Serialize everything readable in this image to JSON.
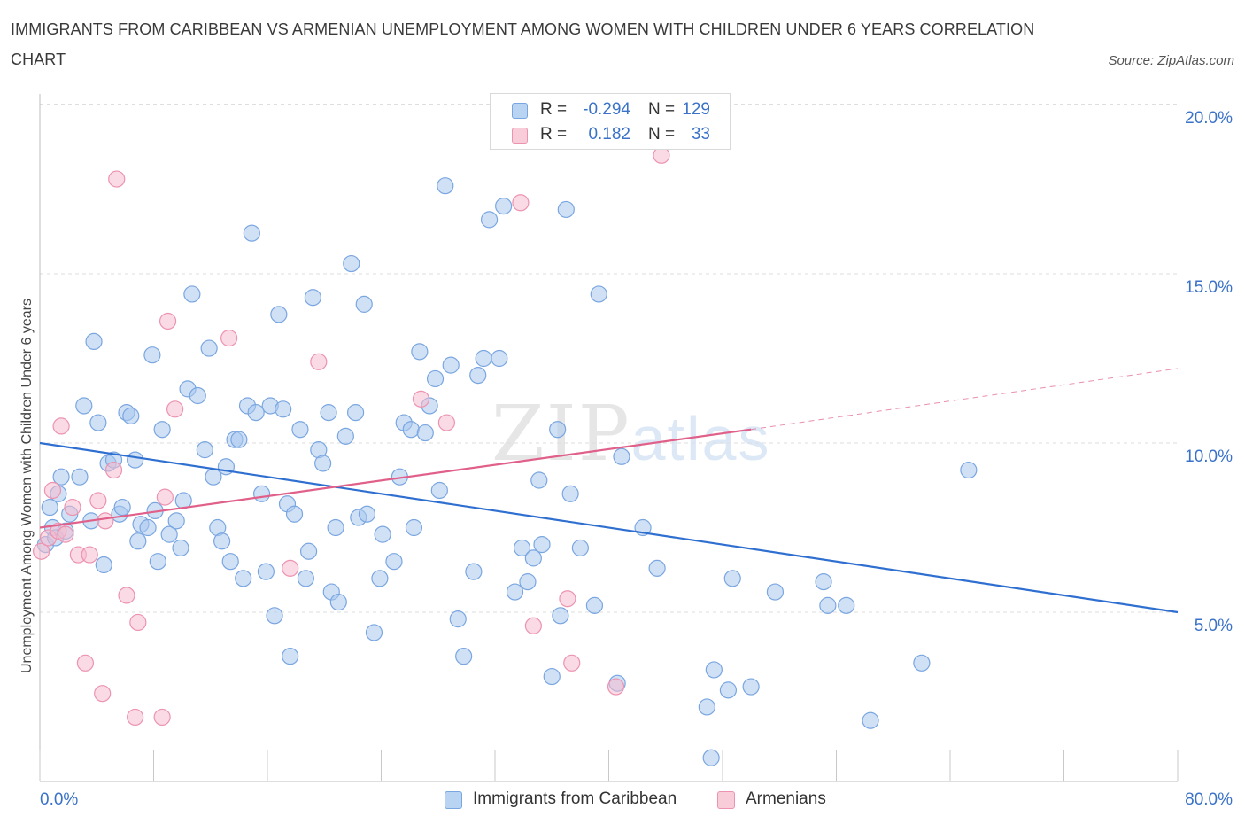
{
  "title": "IMMIGRANTS FROM CARIBBEAN VS ARMENIAN UNEMPLOYMENT AMONG WOMEN WITH CHILDREN UNDER 6 YEARS CORRELATION CHART",
  "source": "Source: ZipAtlas.com",
  "watermark": {
    "part1": "ZIP",
    "part2": "atlas"
  },
  "colors": {
    "blue_fill": "#aac8ef",
    "blue_stroke": "#7aa6e0",
    "blue_line": "#2f6fd0",
    "pink_fill": "#f6bccd",
    "pink_stroke": "#ec93b0",
    "pink_line": "#e0608a",
    "axis_text": "#3a72c8",
    "grid": "#dedede"
  },
  "legend_top": {
    "rows": [
      {
        "r_label": "R =",
        "r_value": "-0.294",
        "n_label": "N =",
        "n_value": "129"
      },
      {
        "r_label": "R =",
        "r_value": "0.182",
        "n_label": "N =",
        "n_value": "33"
      }
    ]
  },
  "legend_bottom": {
    "items": [
      "Immigrants from Caribbean",
      "Armenians"
    ]
  },
  "chart_data": {
    "type": "scatter",
    "xlabel": "",
    "ylabel": "Unemployment Among Women with Children Under 6 years",
    "xlim": [
      0,
      80
    ],
    "ylim": [
      0,
      20
    ],
    "x_tick_labels": [
      "0.0%",
      "80.0%"
    ],
    "y_tick_labels": [
      "5.0%",
      "10.0%",
      "15.0%",
      "20.0%"
    ],
    "y_gridlines": [
      5,
      10,
      15,
      20
    ],
    "grid": "dashed horizontal",
    "legend": "top-center and bottom",
    "series": [
      {
        "name": "Immigrants from Caribbean",
        "trend": {
          "x": [
            0,
            80
          ],
          "y": [
            10.0,
            5.0
          ],
          "style": "solid"
        },
        "points": [
          [
            0.4,
            7.0
          ],
          [
            0.7,
            8.1
          ],
          [
            0.9,
            7.5
          ],
          [
            1.1,
            7.2
          ],
          [
            1.3,
            8.5
          ],
          [
            1.5,
            9.0
          ],
          [
            1.8,
            7.4
          ],
          [
            2.1,
            7.9
          ],
          [
            2.8,
            9.0
          ],
          [
            3.1,
            11.1
          ],
          [
            3.6,
            7.7
          ],
          [
            3.8,
            13.0
          ],
          [
            4.1,
            10.6
          ],
          [
            4.5,
            6.4
          ],
          [
            4.8,
            9.4
          ],
          [
            5.2,
            9.5
          ],
          [
            5.6,
            7.9
          ],
          [
            5.8,
            8.1
          ],
          [
            6.1,
            10.9
          ],
          [
            6.4,
            10.8
          ],
          [
            6.7,
            9.5
          ],
          [
            6.9,
            7.1
          ],
          [
            7.1,
            7.6
          ],
          [
            7.6,
            7.5
          ],
          [
            7.9,
            12.6
          ],
          [
            8.1,
            8.0
          ],
          [
            8.3,
            6.5
          ],
          [
            8.6,
            10.4
          ],
          [
            9.1,
            7.3
          ],
          [
            9.6,
            7.7
          ],
          [
            9.9,
            6.9
          ],
          [
            10.1,
            8.3
          ],
          [
            10.4,
            11.6
          ],
          [
            10.7,
            14.4
          ],
          [
            11.1,
            11.4
          ],
          [
            11.6,
            9.8
          ],
          [
            11.9,
            12.8
          ],
          [
            12.2,
            9.0
          ],
          [
            12.5,
            7.5
          ],
          [
            12.8,
            7.1
          ],
          [
            13.1,
            9.3
          ],
          [
            13.4,
            6.5
          ],
          [
            13.7,
            10.1
          ],
          [
            14.0,
            10.1
          ],
          [
            14.3,
            6.0
          ],
          [
            14.6,
            11.1
          ],
          [
            14.9,
            16.2
          ],
          [
            15.2,
            10.9
          ],
          [
            15.6,
            8.5
          ],
          [
            15.9,
            6.2
          ],
          [
            16.2,
            11.1
          ],
          [
            16.5,
            4.9
          ],
          [
            16.8,
            13.8
          ],
          [
            17.1,
            11.0
          ],
          [
            17.4,
            8.2
          ],
          [
            17.6,
            3.7
          ],
          [
            17.9,
            7.9
          ],
          [
            18.3,
            10.4
          ],
          [
            18.7,
            6.0
          ],
          [
            18.9,
            6.8
          ],
          [
            19.2,
            14.3
          ],
          [
            19.6,
            9.8
          ],
          [
            19.9,
            9.4
          ],
          [
            20.3,
            10.9
          ],
          [
            20.5,
            5.6
          ],
          [
            20.8,
            7.5
          ],
          [
            21.0,
            5.3
          ],
          [
            21.5,
            10.2
          ],
          [
            21.9,
            15.3
          ],
          [
            22.2,
            10.9
          ],
          [
            22.4,
            7.8
          ],
          [
            22.8,
            14.1
          ],
          [
            23.0,
            7.9
          ],
          [
            23.5,
            4.4
          ],
          [
            23.9,
            6.0
          ],
          [
            24.1,
            7.3
          ],
          [
            24.9,
            6.5
          ],
          [
            25.3,
            9.0
          ],
          [
            25.6,
            10.6
          ],
          [
            26.1,
            10.4
          ],
          [
            26.3,
            7.5
          ],
          [
            26.7,
            12.7
          ],
          [
            27.1,
            10.3
          ],
          [
            27.4,
            11.1
          ],
          [
            27.8,
            11.9
          ],
          [
            28.1,
            8.6
          ],
          [
            28.5,
            17.6
          ],
          [
            28.9,
            12.3
          ],
          [
            29.4,
            4.8
          ],
          [
            29.8,
            3.7
          ],
          [
            30.5,
            6.2
          ],
          [
            30.8,
            12.0
          ],
          [
            31.2,
            12.5
          ],
          [
            31.6,
            16.6
          ],
          [
            32.3,
            12.5
          ],
          [
            32.6,
            17.0
          ],
          [
            33.4,
            5.6
          ],
          [
            33.9,
            6.9
          ],
          [
            34.3,
            5.9
          ],
          [
            34.7,
            6.6
          ],
          [
            35.1,
            8.9
          ],
          [
            35.3,
            7.0
          ],
          [
            36.0,
            3.1
          ],
          [
            36.4,
            10.4
          ],
          [
            36.6,
            4.9
          ],
          [
            37.0,
            16.9
          ],
          [
            37.3,
            8.5
          ],
          [
            38.0,
            6.9
          ],
          [
            39.0,
            5.2
          ],
          [
            39.3,
            14.4
          ],
          [
            40.6,
            2.9
          ],
          [
            40.9,
            9.6
          ],
          [
            42.4,
            7.5
          ],
          [
            43.4,
            6.3
          ],
          [
            46.9,
            2.2
          ],
          [
            47.2,
            0.7
          ],
          [
            47.4,
            3.3
          ],
          [
            48.4,
            2.7
          ],
          [
            48.7,
            6.0
          ],
          [
            50.0,
            2.8
          ],
          [
            51.7,
            5.6
          ],
          [
            55.1,
            5.9
          ],
          [
            55.4,
            5.2
          ],
          [
            56.7,
            5.2
          ],
          [
            58.4,
            1.8
          ],
          [
            62.0,
            3.5
          ],
          [
            65.3,
            9.2
          ]
        ]
      },
      {
        "name": "Armenians",
        "trend": {
          "x": [
            0,
            50
          ],
          "y": [
            7.5,
            10.4
          ],
          "style": "solid",
          "extension": {
            "x": [
              50,
              80
            ],
            "y": [
              10.4,
              12.2
            ],
            "style": "dashed"
          }
        },
        "points": [
          [
            0.1,
            6.8
          ],
          [
            0.6,
            7.2
          ],
          [
            0.9,
            8.6
          ],
          [
            1.3,
            7.4
          ],
          [
            1.5,
            10.5
          ],
          [
            1.8,
            7.3
          ],
          [
            2.3,
            8.1
          ],
          [
            2.7,
            6.7
          ],
          [
            3.2,
            3.5
          ],
          [
            3.5,
            6.7
          ],
          [
            4.1,
            8.3
          ],
          [
            4.4,
            2.6
          ],
          [
            4.6,
            7.7
          ],
          [
            5.2,
            9.2
          ],
          [
            5.4,
            17.8
          ],
          [
            6.1,
            5.5
          ],
          [
            6.7,
            1.9
          ],
          [
            6.9,
            4.7
          ],
          [
            8.6,
            1.9
          ],
          [
            8.8,
            8.4
          ],
          [
            9.0,
            13.6
          ],
          [
            9.5,
            11.0
          ],
          [
            13.3,
            13.1
          ],
          [
            17.6,
            6.3
          ],
          [
            19.6,
            12.4
          ],
          [
            26.8,
            11.3
          ],
          [
            28.6,
            10.6
          ],
          [
            33.8,
            17.1
          ],
          [
            34.7,
            4.6
          ],
          [
            37.1,
            5.4
          ],
          [
            37.4,
            3.5
          ],
          [
            40.5,
            2.8
          ],
          [
            43.7,
            18.5
          ]
        ]
      }
    ]
  }
}
